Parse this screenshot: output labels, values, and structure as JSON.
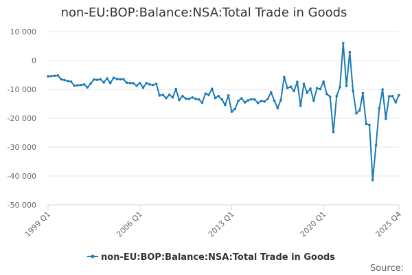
{
  "chart_data": {
    "type": "line",
    "title": "non-EU:BOP:Balance:NSA:Total Trade in Goods",
    "xlabel": "",
    "ylabel": "",
    "ylim": [
      -50000,
      10000
    ],
    "y_ticks": [
      10000,
      0,
      -10000,
      -20000,
      -30000,
      -40000,
      -50000
    ],
    "y_tick_labels": [
      "10 000",
      "0",
      "-10 000",
      "-20 000",
      "-30 000",
      "-40 000",
      "-50 000"
    ],
    "x_start": "1999 Q1",
    "x_tick_labels": [
      {
        "index": 0,
        "label": "1999 Q1"
      },
      {
        "index": 28,
        "label": "2006 Q1"
      },
      {
        "index": 56,
        "label": "2013 Q1"
      },
      {
        "index": 84,
        "label": "2020 Q1"
      },
      {
        "index": 107,
        "label": "2025 Q4"
      }
    ],
    "grid": true,
    "legend": "bottom-center",
    "series": [
      {
        "name": "non-EU:BOP:Balance:NSA:Total Trade in Goods",
        "color": "#1a7ab5",
        "values": [
          -5500,
          -5400,
          -5300,
          -5200,
          -6500,
          -6800,
          -7100,
          -7300,
          -8700,
          -8600,
          -8500,
          -8300,
          -9300,
          -8000,
          -6600,
          -6700,
          -6500,
          -7600,
          -6200,
          -7800,
          -6000,
          -6400,
          -6500,
          -6500,
          -7700,
          -7800,
          -7900,
          -8700,
          -7800,
          -9400,
          -7800,
          -8300,
          -8500,
          -8100,
          -12100,
          -11900,
          -13000,
          -11900,
          -12800,
          -9900,
          -13700,
          -12300,
          -13200,
          -13300,
          -12800,
          -13300,
          -13500,
          -14600,
          -11500,
          -11900,
          -9800,
          -13000,
          -12300,
          -13500,
          -15400,
          -12100,
          -17700,
          -16800,
          -14000,
          -13100,
          -14500,
          -13800,
          -13400,
          -13500,
          -14700,
          -14000,
          -14200,
          -13300,
          -11000,
          -13900,
          -16500,
          -13600,
          -5700,
          -9500,
          -9100,
          -10600,
          -7400,
          -15700,
          -8100,
          -11200,
          -9700,
          -13900,
          -9600,
          -9900,
          -7300,
          -11600,
          -12500,
          -24800,
          -12300,
          -9200,
          6000,
          -8800,
          2900,
          -10600,
          -18300,
          -17300,
          -11300,
          -22000,
          -22300,
          -41400,
          -29300,
          -16500,
          -10000,
          -20200,
          -12400,
          -12300,
          -14500,
          -12000
        ]
      }
    ],
    "source_label": "Source:"
  }
}
